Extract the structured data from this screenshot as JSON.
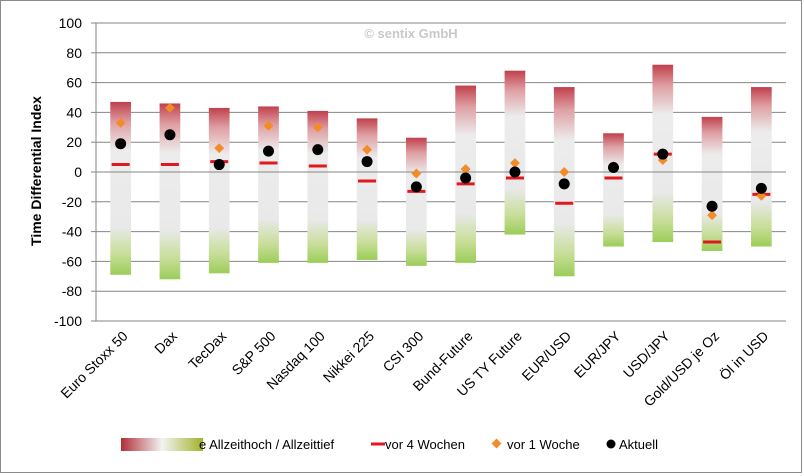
{
  "chart_data": {
    "type": "range-bar",
    "watermark": "© sentix GmbH",
    "ylabel": "Time Differential Index",
    "ylim": [
      -100,
      100
    ],
    "yticks": [
      100,
      80,
      60,
      40,
      20,
      0,
      -20,
      -40,
      -60,
      -80,
      -100
    ],
    "categories": [
      "Euro Stoxx 50",
      "Dax",
      "TecDax",
      "S&P 500",
      "Nasdaq 100",
      "Nikkei 225",
      "CSI 300",
      "Bund-Future",
      "US TY Future",
      "EUR/USD",
      "EUR/JPY",
      "USD/JPY",
      "Gold/USD je Oz",
      "Öl in USD"
    ],
    "series": [
      {
        "name": "e Allzeithoch / Allzeittief",
        "kind": "range",
        "high": [
          47,
          46,
          43,
          44,
          41,
          36,
          23,
          58,
          68,
          57,
          26,
          72,
          37,
          57
        ],
        "low": [
          -69,
          -72,
          -68,
          -61,
          -61,
          -59,
          -63,
          -61,
          -42,
          -70,
          -50,
          -47,
          -53,
          -50
        ]
      },
      {
        "name": "vor 4 Wochen",
        "kind": "dash",
        "color": "#e0191f",
        "values": [
          5,
          5,
          7,
          6,
          4,
          -6,
          -13,
          -8,
          -4,
          -21,
          -4,
          12,
          -47,
          -15
        ]
      },
      {
        "name": "vor 1 Woche",
        "kind": "diamond",
        "color": "#f28c28",
        "values": [
          33,
          43,
          16,
          31,
          30,
          15,
          -1,
          2,
          6,
          0,
          4,
          8,
          -29,
          -16
        ]
      },
      {
        "name": "Aktuell",
        "kind": "dot",
        "color": "#000000",
        "values": [
          19,
          25,
          5,
          14,
          15,
          7,
          -10,
          -4,
          0,
          -8,
          3,
          12,
          -23,
          -11
        ]
      }
    ]
  }
}
